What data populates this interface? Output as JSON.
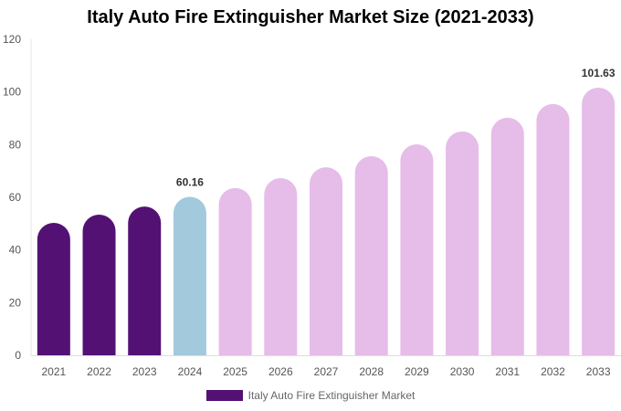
{
  "chart_data": {
    "type": "bar",
    "title": "Italy Auto Fire Extinguisher Market Size (2021-2033)",
    "categories": [
      "2021",
      "2022",
      "2023",
      "2024",
      "2025",
      "2026",
      "2027",
      "2028",
      "2029",
      "2030",
      "2031",
      "2032",
      "2033"
    ],
    "series": [
      {
        "name": "Italy Auto Fire Extinguisher Market",
        "values": [
          50.3,
          53.4,
          56.5,
          60.16,
          63.5,
          67.3,
          71.4,
          75.6,
          80.1,
          85.0,
          90.2,
          95.4,
          101.63
        ]
      }
    ],
    "data_labels": {
      "3": "60.16",
      "12": "101.63"
    },
    "ylim": [
      0,
      120
    ],
    "yticks": [
      0,
      20,
      40,
      60,
      80,
      100,
      120
    ],
    "xlabel": "",
    "ylabel": "",
    "grid": false,
    "legend": "bottom",
    "colors": {
      "historical": "#541174",
      "current": "#a3c9dd",
      "forecast": "#e6bce9"
    }
  }
}
